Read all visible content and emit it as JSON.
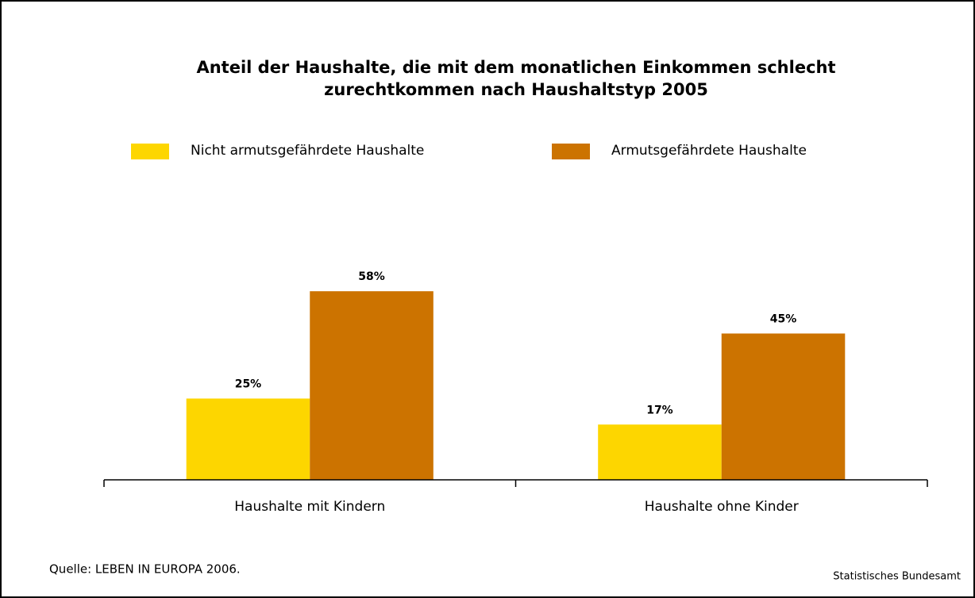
{
  "chart_data": {
    "type": "bar",
    "title": [
      "Anteil der Haushalte, die mit dem monatlichen Einkommen schlecht",
      "zurechtkommen nach Haushaltstyp  2005"
    ],
    "categories": [
      "Haushalte mit Kindern",
      "Haushalte ohne Kinder"
    ],
    "series": [
      {
        "name": "Nicht armutsgefährdete Haushalte",
        "color": "#fdd600",
        "values": [
          25,
          17
        ],
        "value_labels": [
          "25%",
          "17%"
        ]
      },
      {
        "name": "Armutsgefährdete Haushalte",
        "color": "#cc7300",
        "values": [
          58,
          45
        ],
        "value_labels": [
          "58%",
          "45%"
        ]
      }
    ],
    "ylim": [
      0,
      100
    ],
    "source": "Quelle: LEBEN IN EUROPA 2006.",
    "credit": "Statistisches Bundesamt"
  }
}
